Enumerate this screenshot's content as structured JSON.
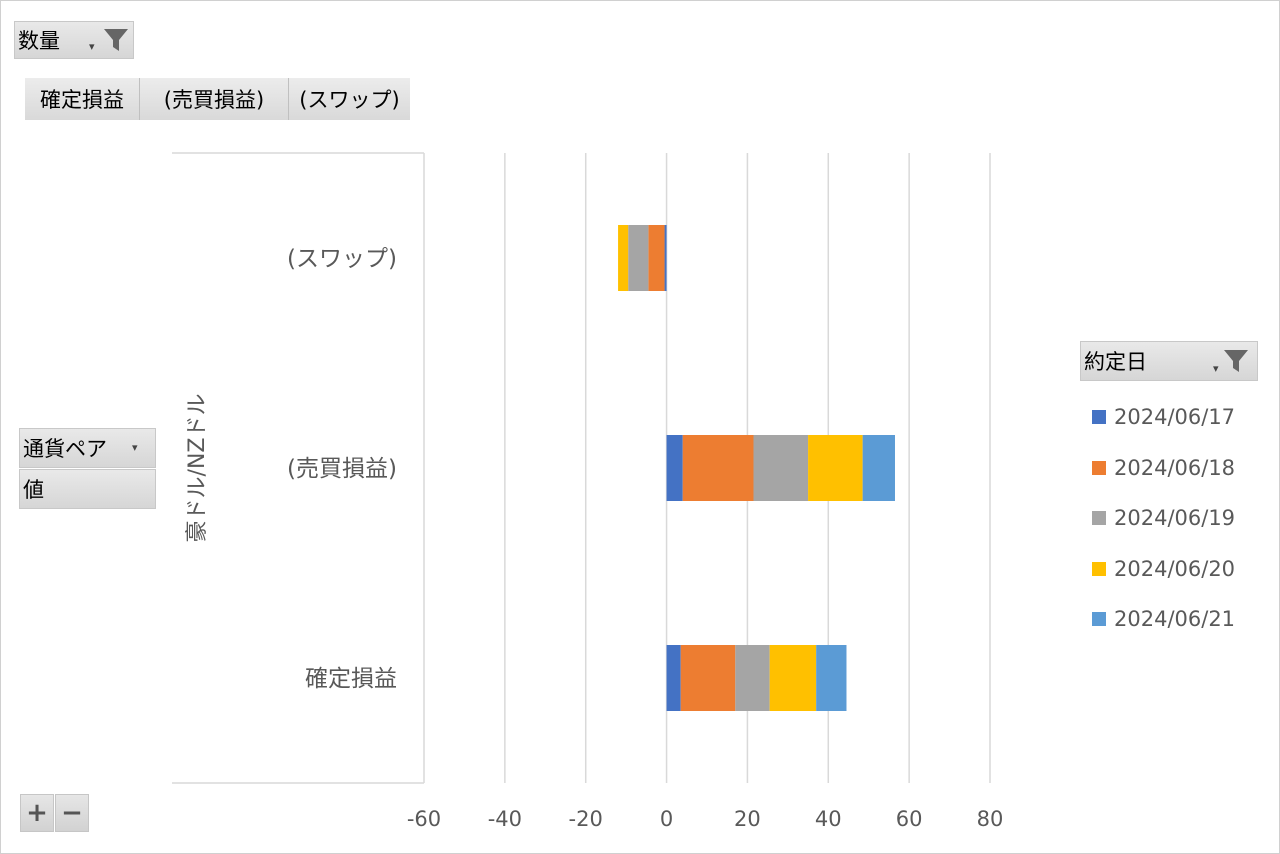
{
  "filters": {
    "quantity": {
      "label": "数量"
    },
    "columns": [
      "確定損益",
      "(売買損益)",
      "(スワップ)"
    ],
    "currency_pair": {
      "label": "通貨ペア"
    },
    "value": {
      "label": "値"
    },
    "date": {
      "label": "約定日"
    }
  },
  "tools": {
    "expand": "+",
    "collapse": "−"
  },
  "colors": {
    "2024/06/17": "#4472c4",
    "2024/06/18": "#ed7d31",
    "2024/06/19": "#a5a5a5",
    "2024/06/20": "#ffc000",
    "2024/06/21": "#5b9bd5"
  },
  "chart_data": {
    "type": "bar",
    "orientation": "horizontal",
    "stacked": true,
    "group_label": "豪ドル/NZドル",
    "categories": [
      "確定損益",
      "(売買損益)",
      "(スワップ)"
    ],
    "series": [
      {
        "name": "2024/06/17",
        "values": [
          3.5,
          4,
          -0.5
        ]
      },
      {
        "name": "2024/06/18",
        "values": [
          13.5,
          17.5,
          -4
        ]
      },
      {
        "name": "2024/06/19",
        "values": [
          8.5,
          13.5,
          -5
        ]
      },
      {
        "name": "2024/06/20",
        "values": [
          11.5,
          13.5,
          -2.5
        ]
      },
      {
        "name": "2024/06/21",
        "values": [
          7.5,
          8,
          0
        ]
      }
    ],
    "xlim": [
      -60,
      80
    ],
    "xticks": [
      -60,
      -40,
      -20,
      0,
      20,
      40,
      60,
      80
    ],
    "grid": true,
    "legend": "right"
  }
}
